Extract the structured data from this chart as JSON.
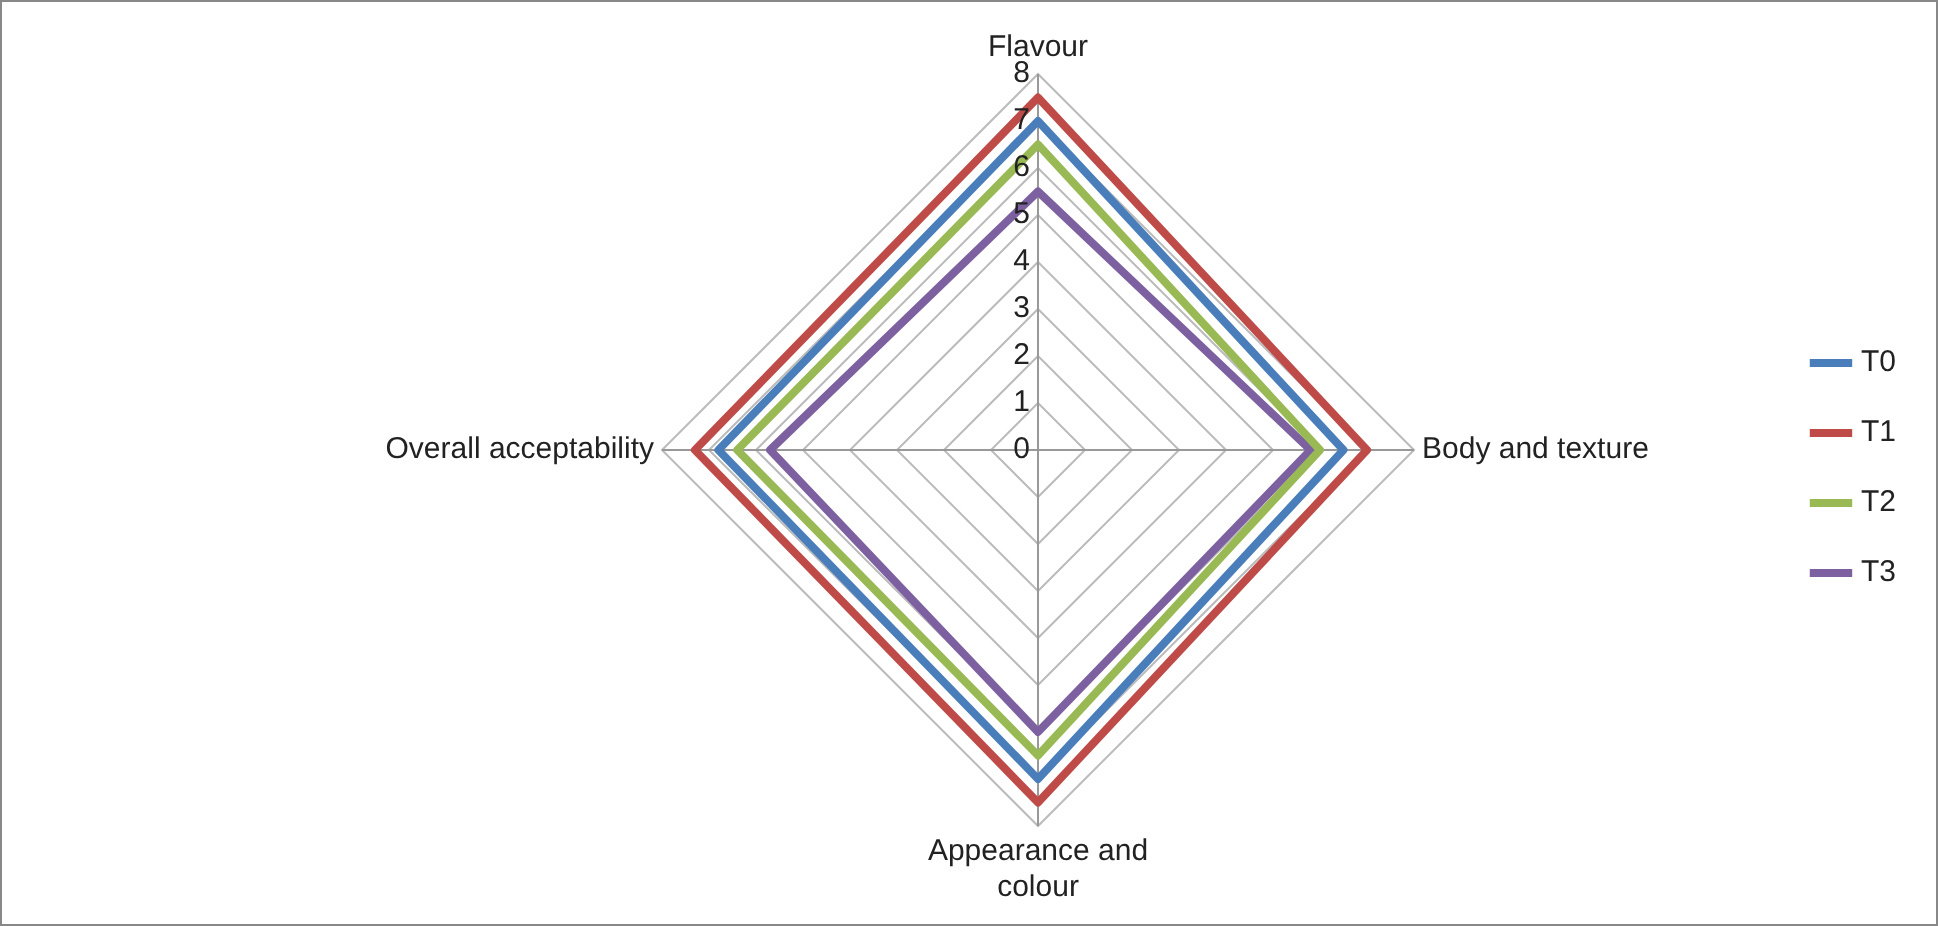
{
  "chart_data": {
    "type": "radar",
    "categories": [
      "Flavour",
      "Body and texture",
      "Appearance and colour",
      "Overall acceptability"
    ],
    "series": [
      {
        "name": "T0",
        "color": "#4a7ebb",
        "values": [
          7.0,
          6.5,
          7.0,
          6.8
        ]
      },
      {
        "name": "T1",
        "color": "#be4b48",
        "values": [
          7.5,
          7.0,
          7.5,
          7.3
        ]
      },
      {
        "name": "T2",
        "color": "#98b954",
        "values": [
          6.5,
          6.0,
          6.5,
          6.4
        ]
      },
      {
        "name": "T3",
        "color": "#7d60a0",
        "values": [
          5.5,
          5.8,
          6.0,
          5.7
        ]
      }
    ],
    "ylim": [
      0,
      8
    ],
    "yticks": [
      0,
      1,
      2,
      3,
      4,
      5,
      6,
      7,
      8
    ],
    "grid": true,
    "legend": "right",
    "marker": "none",
    "line_style": "solid"
  }
}
